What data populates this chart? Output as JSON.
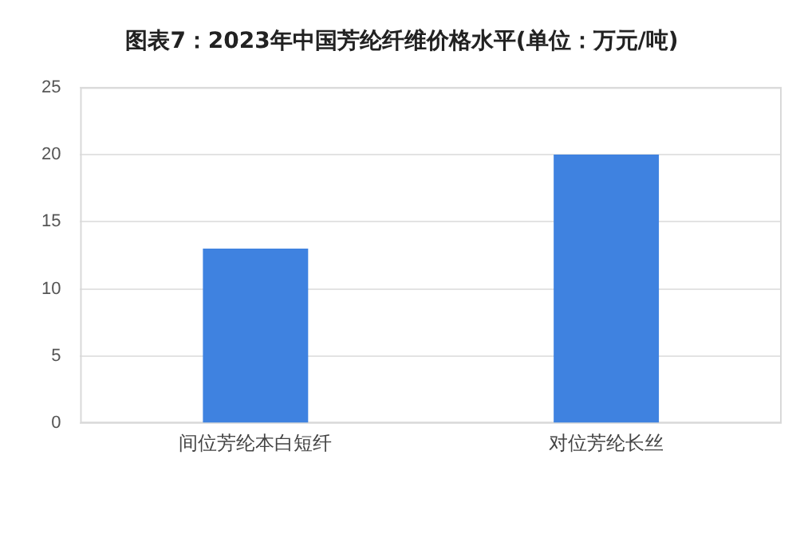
{
  "chart_data": {
    "type": "bar",
    "title": "图表7：2023年中国芳纶纤维价格水平(单位：万元/吨)",
    "categories": [
      "间位芳纶本白短纤",
      "对位芳纶长丝"
    ],
    "values": [
      13,
      20
    ],
    "color": "#3f82e0",
    "ylim": [
      0,
      25
    ],
    "yticks": [
      0,
      5,
      10,
      15,
      20,
      25
    ],
    "grid": "y",
    "legend": false
  }
}
